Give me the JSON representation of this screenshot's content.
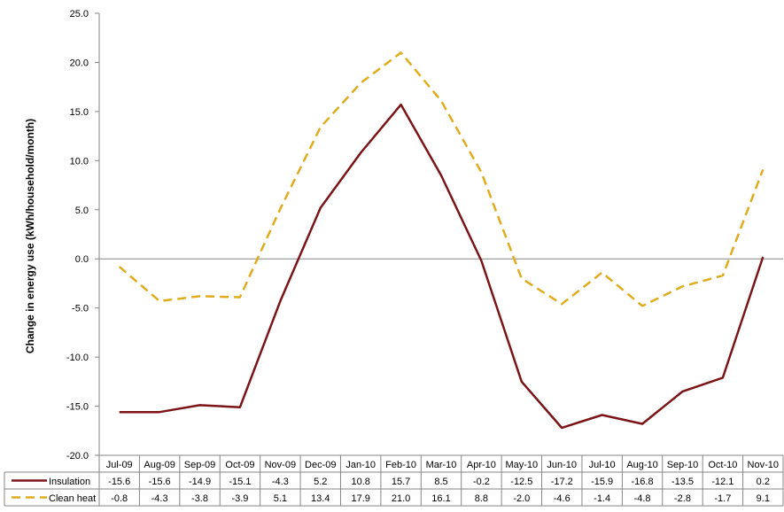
{
  "chart_data": {
    "type": "line",
    "title": "",
    "xlabel": "",
    "ylabel": "Change in energy use (kWh/household/month)",
    "ylim": [
      -20,
      25
    ],
    "yticks": [
      "25.0",
      "20.0",
      "15.0",
      "10.0",
      "5.0",
      "0.0",
      "-5.0",
      "-10.0",
      "-15.0",
      "-20.0"
    ],
    "grid": false,
    "legend": "data-table",
    "categories": [
      "Jul-09",
      "Aug-09",
      "Sep-09",
      "Oct-09",
      "Nov-09",
      "Dec-09",
      "Jan-10",
      "Feb-10",
      "Mar-10",
      "Apr-10",
      "May-10",
      "Jun-10",
      "Jul-10",
      "Aug-10",
      "Sep-10",
      "Oct-10",
      "Nov-10"
    ],
    "series": [
      {
        "name": "Insulation",
        "color": "#7b1416",
        "style": "solid",
        "values": [
          -15.6,
          -15.6,
          -14.9,
          -15.1,
          -4.3,
          5.2,
          10.8,
          15.7,
          8.5,
          -0.2,
          -12.5,
          -17.2,
          -15.9,
          -16.8,
          -13.5,
          -12.1,
          0.2
        ],
        "labels": [
          "-15.6",
          "-15.6",
          "-14.9",
          "-15.1",
          "-4.3",
          "5.2",
          "10.8",
          "15.7",
          "8.5",
          "-0.2",
          "-12.5",
          "-17.2",
          "-15.9",
          "-16.8",
          "-13.5",
          "-12.1",
          "0.2"
        ]
      },
      {
        "name": "Clean heat",
        "color": "#e0ac1e",
        "style": "dashed",
        "values": [
          -0.8,
          -4.3,
          -3.8,
          -3.9,
          5.1,
          13.4,
          17.9,
          21.0,
          16.1,
          8.8,
          -2.0,
          -4.6,
          -1.4,
          -4.8,
          -2.8,
          -1.7,
          9.1
        ],
        "labels": [
          "-0.8",
          "-4.3",
          "-3.8",
          "-3.9",
          "5.1",
          "13.4",
          "17.9",
          "21.0",
          "16.1",
          "8.8",
          "-2.0",
          "-4.6",
          "-1.4",
          "-4.8",
          "-2.8",
          "-1.7",
          "9.1"
        ]
      }
    ]
  }
}
